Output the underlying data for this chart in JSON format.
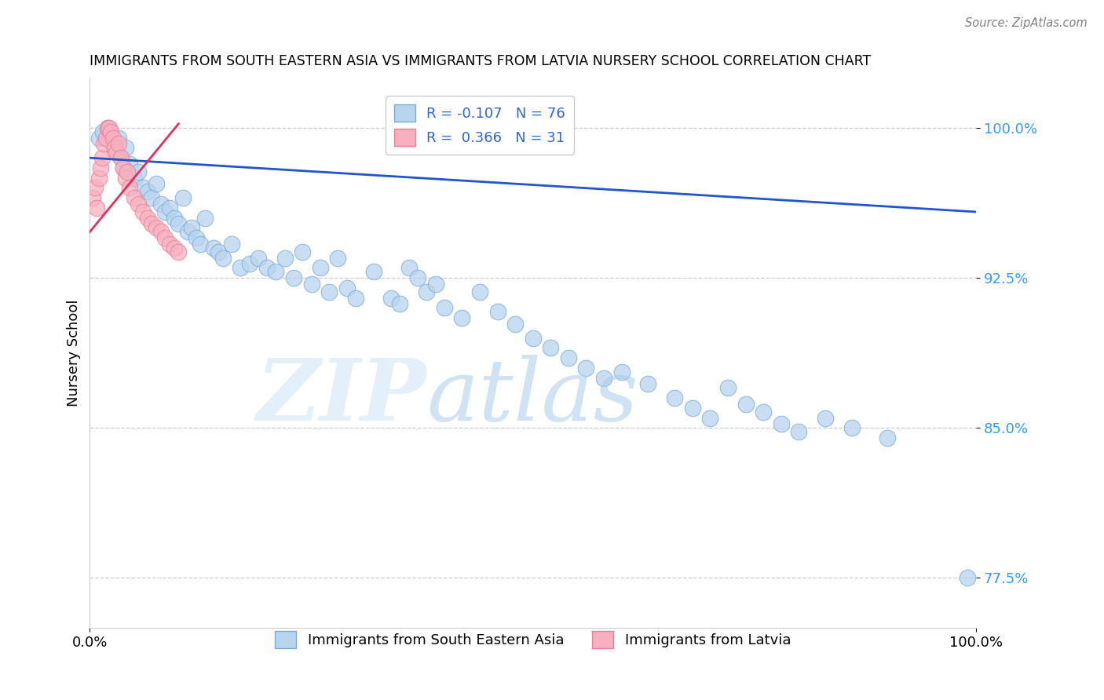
{
  "title": "IMMIGRANTS FROM SOUTH EASTERN ASIA VS IMMIGRANTS FROM LATVIA NURSERY SCHOOL CORRELATION CHART",
  "source": "Source: ZipAtlas.com",
  "ylabel": "Nursery School",
  "xlabel": "",
  "xlim": [
    0.0,
    100.0
  ],
  "ylim": [
    75.0,
    102.5
  ],
  "yticks": [
    77.5,
    85.0,
    92.5,
    100.0
  ],
  "ytick_labels": [
    "77.5%",
    "85.0%",
    "92.5%",
    "100.0%"
  ],
  "xticks": [
    0.0,
    100.0
  ],
  "xtick_labels": [
    "0.0%",
    "100.0%"
  ],
  "blue_R": -0.107,
  "blue_N": 76,
  "pink_R": 0.366,
  "pink_N": 31,
  "blue_color": "#b8d4ee",
  "blue_edge": "#7aaad8",
  "pink_color": "#f8b0c0",
  "pink_edge": "#e88098",
  "blue_line_color": "#2255cc",
  "pink_line_color": "#e03060",
  "legend_label_blue": "Immigrants from South Eastern Asia",
  "legend_label_pink": "Immigrants from Latvia",
  "blue_line_x": [
    0,
    100
  ],
  "blue_line_y": [
    98.5,
    95.8
  ],
  "pink_line_x": [
    0,
    10
  ],
  "pink_line_y": [
    94.8,
    100.2
  ],
  "blue_scatter_x": [
    1.0,
    1.5,
    2.0,
    2.5,
    2.8,
    3.2,
    3.5,
    3.8,
    4.0,
    4.5,
    5.0,
    5.5,
    6.0,
    6.5,
    7.0,
    7.5,
    8.0,
    8.5,
    9.0,
    9.5,
    10.0,
    10.5,
    11.0,
    11.5,
    12.0,
    12.5,
    13.0,
    14.0,
    14.5,
    15.0,
    16.0,
    17.0,
    18.0,
    19.0,
    20.0,
    21.0,
    22.0,
    23.0,
    24.0,
    25.0,
    26.0,
    27.0,
    28.0,
    29.0,
    30.0,
    32.0,
    34.0,
    35.0,
    36.0,
    37.0,
    38.0,
    39.0,
    40.0,
    42.0,
    44.0,
    46.0,
    48.0,
    50.0,
    52.0,
    54.0,
    56.0,
    58.0,
    60.0,
    63.0,
    66.0,
    68.0,
    70.0,
    72.0,
    74.0,
    76.0,
    78.0,
    80.0,
    83.0,
    86.0,
    90.0,
    99.0
  ],
  "blue_scatter_y": [
    99.5,
    99.8,
    100.0,
    99.2,
    98.8,
    99.5,
    98.5,
    98.0,
    99.0,
    98.2,
    97.5,
    97.8,
    97.0,
    96.8,
    96.5,
    97.2,
    96.2,
    95.8,
    96.0,
    95.5,
    95.2,
    96.5,
    94.8,
    95.0,
    94.5,
    94.2,
    95.5,
    94.0,
    93.8,
    93.5,
    94.2,
    93.0,
    93.2,
    93.5,
    93.0,
    92.8,
    93.5,
    92.5,
    93.8,
    92.2,
    93.0,
    91.8,
    93.5,
    92.0,
    91.5,
    92.8,
    91.5,
    91.2,
    93.0,
    92.5,
    91.8,
    92.2,
    91.0,
    90.5,
    91.8,
    90.8,
    90.2,
    89.5,
    89.0,
    88.5,
    88.0,
    87.5,
    87.8,
    87.2,
    86.5,
    86.0,
    85.5,
    87.0,
    86.2,
    85.8,
    85.2,
    84.8,
    85.5,
    85.0,
    84.5,
    77.5
  ],
  "pink_scatter_x": [
    0.3,
    0.6,
    0.8,
    1.0,
    1.2,
    1.4,
    1.6,
    1.8,
    2.0,
    2.2,
    2.4,
    2.6,
    2.8,
    3.0,
    3.2,
    3.5,
    3.8,
    4.0,
    4.2,
    4.5,
    5.0,
    5.5,
    6.0,
    6.5,
    7.0,
    7.5,
    8.0,
    8.5,
    9.0,
    9.5,
    10.0
  ],
  "pink_scatter_y": [
    96.5,
    97.0,
    96.0,
    97.5,
    98.0,
    98.5,
    99.2,
    99.5,
    100.0,
    100.0,
    99.8,
    99.5,
    99.0,
    98.8,
    99.2,
    98.5,
    98.0,
    97.5,
    97.8,
    97.0,
    96.5,
    96.2,
    95.8,
    95.5,
    95.2,
    95.0,
    94.8,
    94.5,
    94.2,
    94.0,
    93.8
  ]
}
